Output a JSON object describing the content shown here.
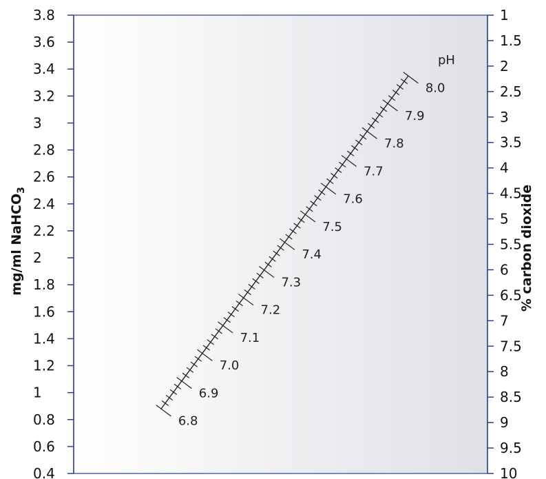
{
  "colors": {
    "axis": "#2b3e87",
    "panel_left": "#ffffff",
    "panel_right": "#dfe0e5",
    "nomogram_line": "#222222",
    "text": "#111111"
  },
  "chart_data": {
    "type": "nomogram",
    "title": "",
    "left_axis": {
      "label": "mg/ml NaHCO",
      "label_subscript": "3",
      "range": [
        0.4,
        3.8
      ],
      "ticks": [
        "3.8",
        "3.6",
        "3.4",
        "3.2",
        "3",
        "2.8",
        "2.6",
        "2.4",
        "2.2",
        "2",
        "1.8",
        "1.6",
        "1.4",
        "1.2",
        "1",
        "0.8",
        "0.6",
        "0.4"
      ]
    },
    "right_axis": {
      "label": "% carbon dioxide",
      "range": [
        1,
        10
      ],
      "ticks": [
        "1",
        "1.5",
        "2",
        "2.5",
        "3",
        "3.5",
        "4",
        "4.5",
        "5",
        "5.5",
        "6",
        "6.5",
        "7",
        "7.5",
        "8",
        "8.5",
        "9",
        "9.5",
        "10"
      ]
    },
    "ph_scale": {
      "title": "pH",
      "start_ph": 6.8,
      "end_ph": 8.0,
      "minor_step": 0.02,
      "labeled_values": [
        "6.8",
        "6.9",
        "7.0",
        "7.1",
        "7.2",
        "7.3",
        "7.4",
        "7.5",
        "7.6",
        "7.7",
        "7.8",
        "7.9",
        "8.0"
      ],
      "start_point": {
        "mg_ml_nahco3": 0.88,
        "percent_co2": 8.7
      },
      "end_point": {
        "mg_ml_nahco3": 3.35,
        "percent_co2": 2.25
      }
    },
    "grid": false,
    "legend": "none"
  }
}
